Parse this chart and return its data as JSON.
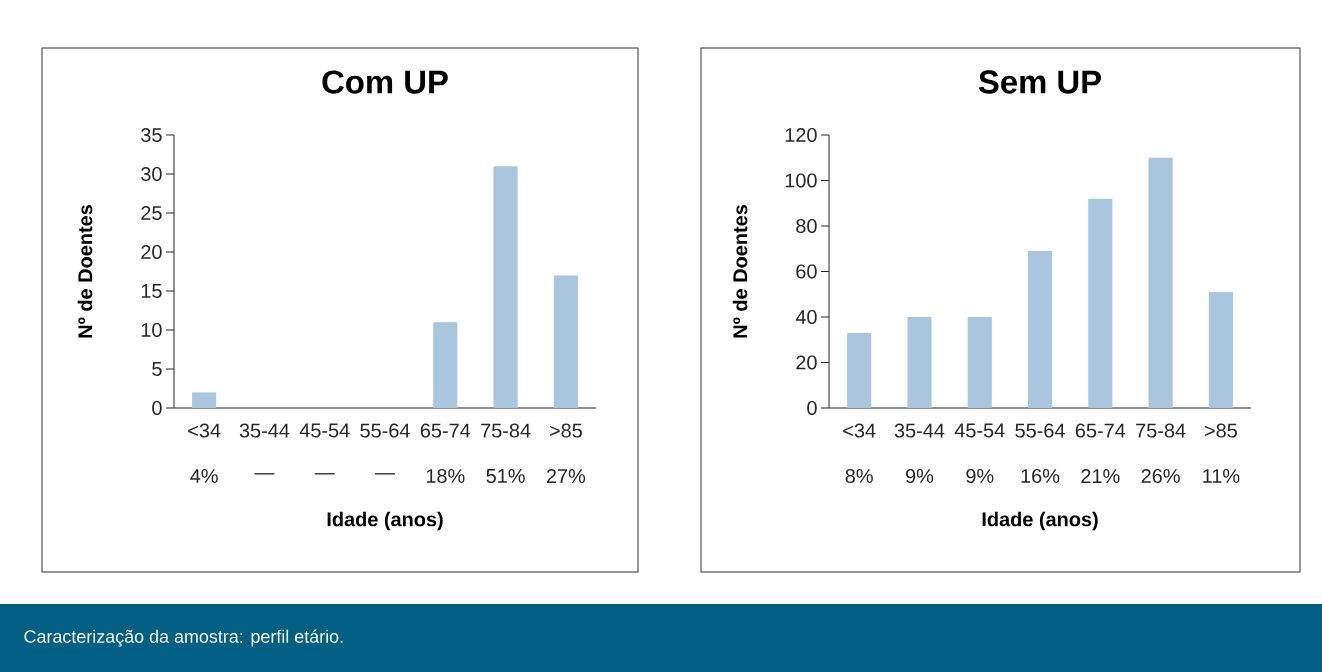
{
  "chart_data": [
    {
      "type": "bar",
      "title": "Com UP",
      "xlabel": "Idade (anos)",
      "ylabel": "Nº de Doentes",
      "categories": [
        "<34",
        "35-44",
        "45-54",
        "55-64",
        "65-74",
        "75-84",
        ">85"
      ],
      "values": [
        2,
        0,
        0,
        0,
        11,
        31,
        17
      ],
      "color": "#a9c6de",
      "ylim": [
        0,
        35
      ],
      "yticks": [
        0,
        5,
        10,
        15,
        20,
        25,
        30,
        35
      ],
      "annotations": [
        "4%",
        "—",
        "—",
        "—",
        "18%",
        "51%",
        "27%",
        "Caracterização da amostra: perfil etário."
      ]
    },
    {
      "type": "bar",
      "title": "Sem UP",
      "xlabel": "Idade (anos)",
      "ylabel": "Nº de Doentes",
      "categories": [
        "<34",
        "35-44",
        "45-54",
        "55-64",
        "65-74",
        "75-84",
        ">85"
      ],
      "values": [
        33,
        40,
        40,
        69,
        92,
        110,
        51
      ],
      "color": "#a9c6de",
      "ylim": [
        0,
        120
      ],
      "yticks": [
        0,
        20,
        40,
        60,
        80,
        100,
        120
      ],
      "annotations": [
        "8%",
        "9%",
        "9%",
        "16%",
        "21%",
        "26%",
        "11%"
      ]
    }
  ]
}
